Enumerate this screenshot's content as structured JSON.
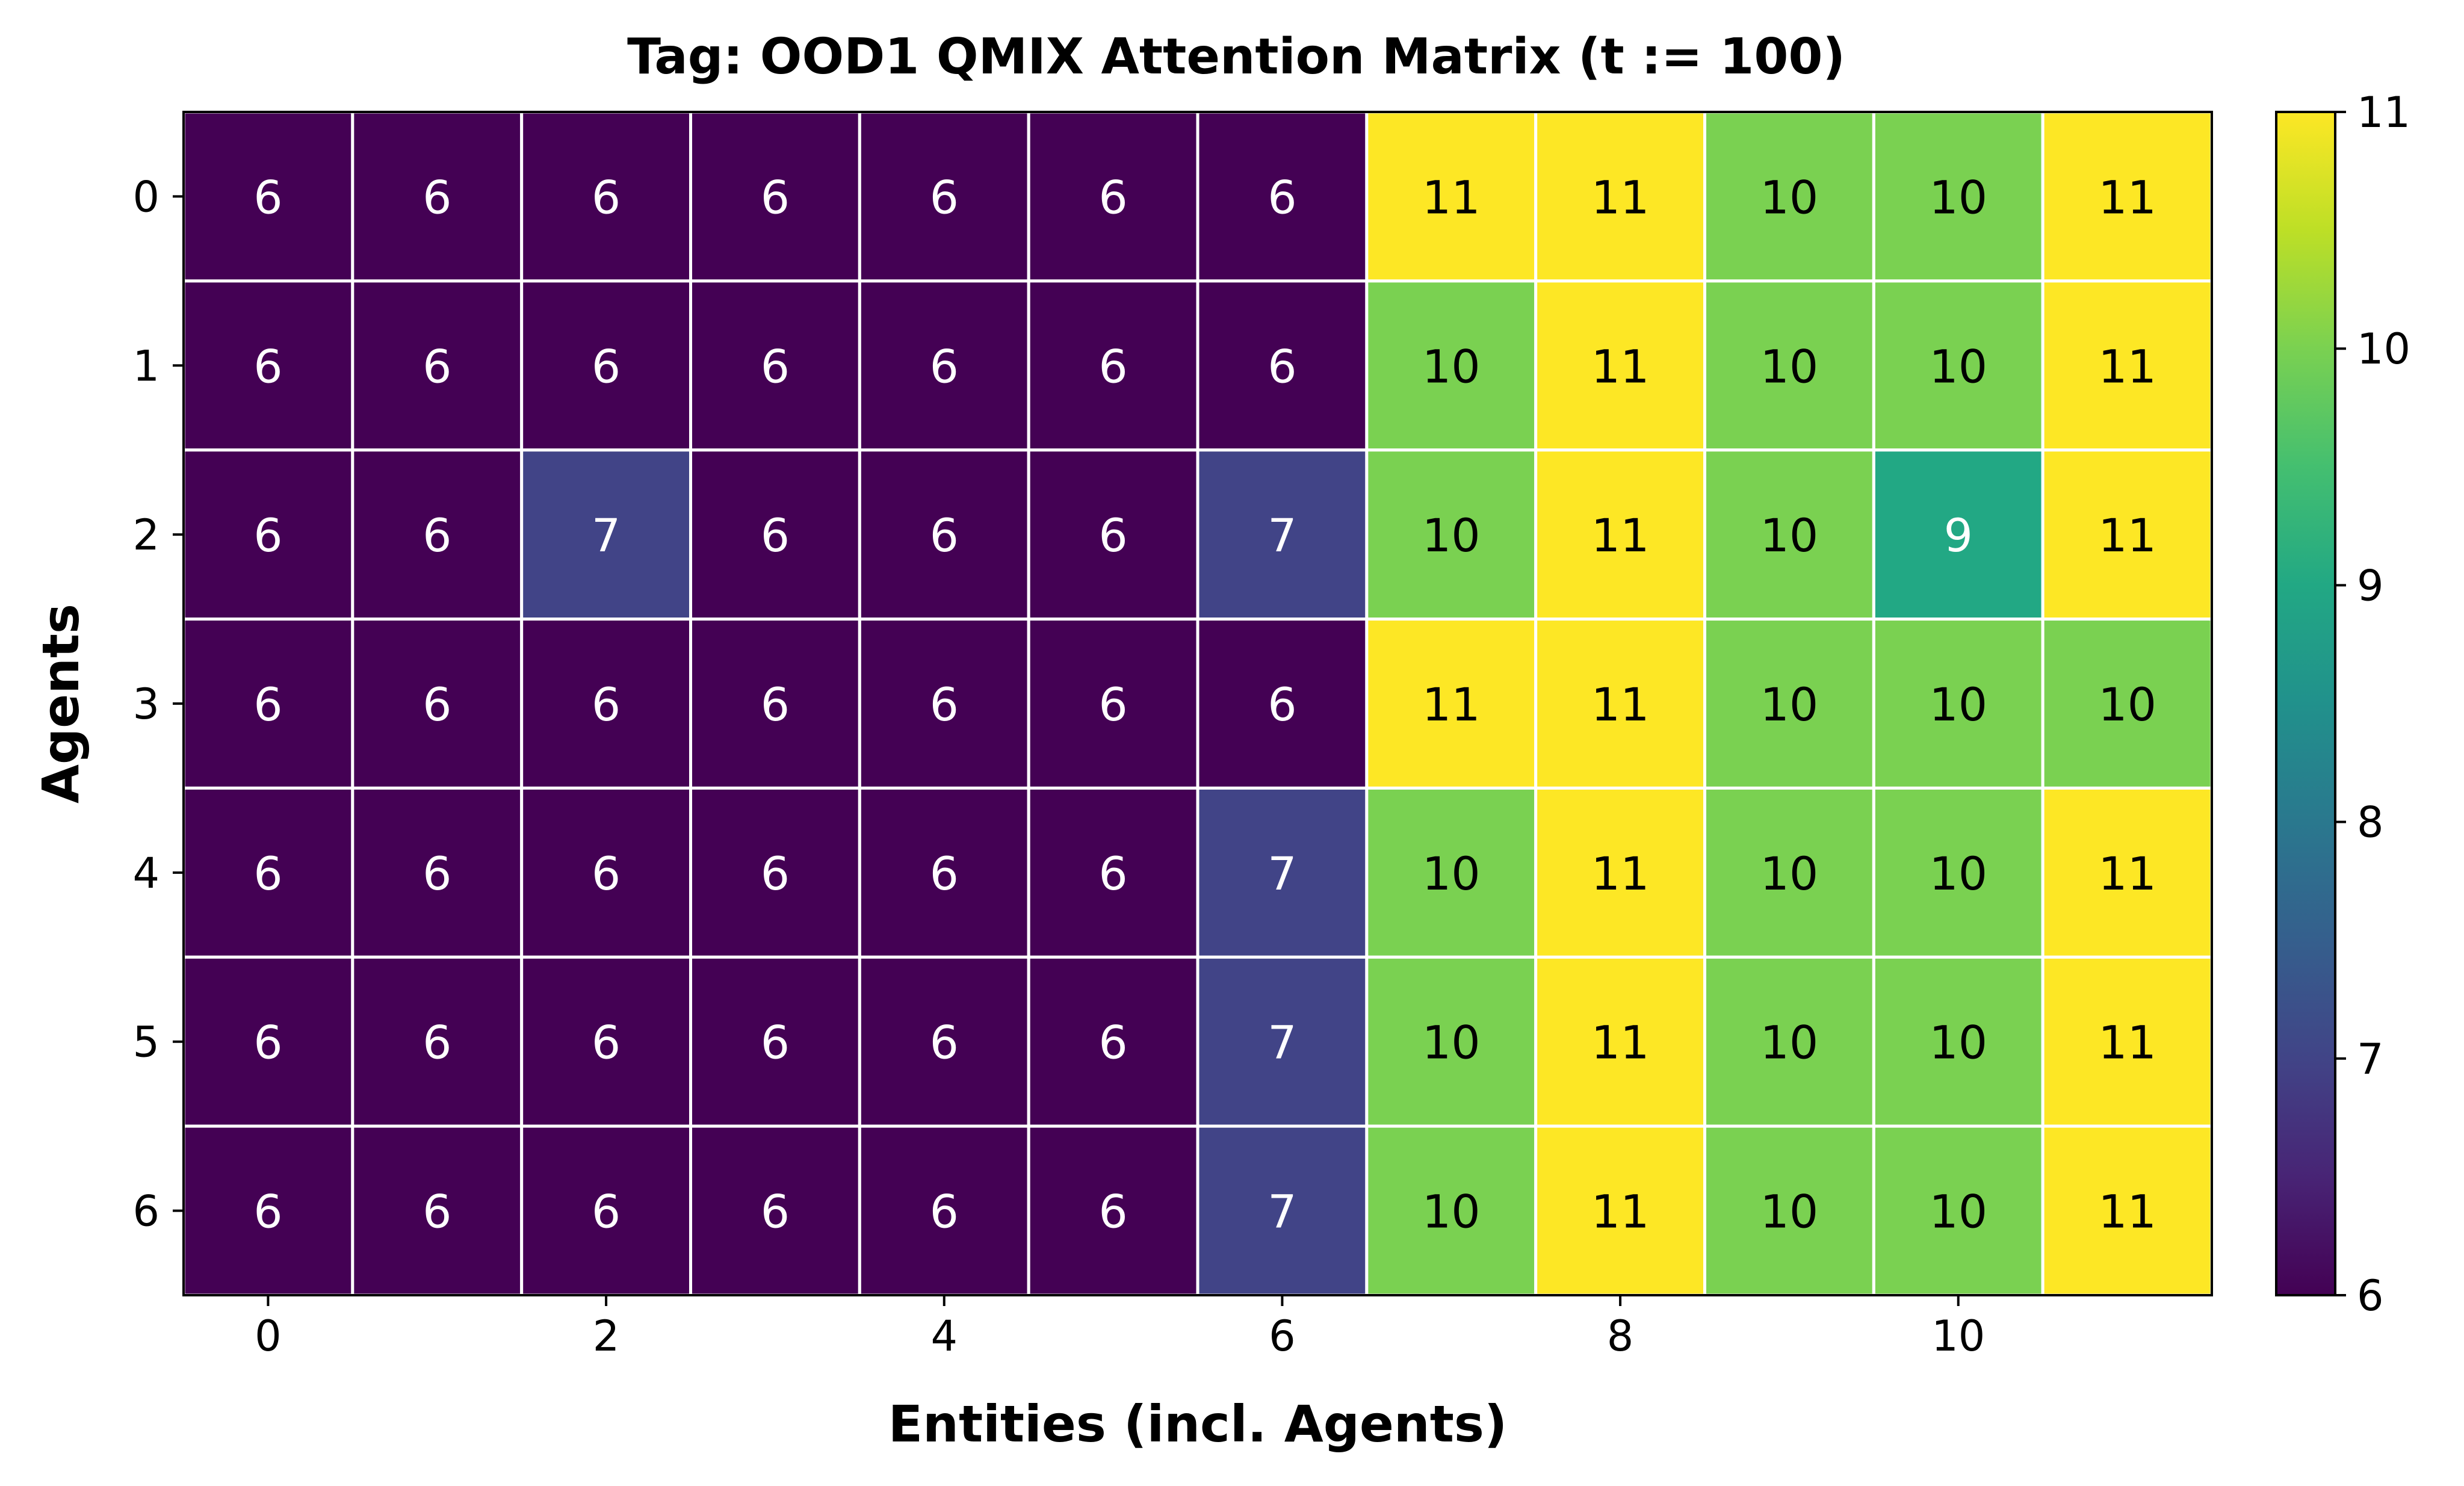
{
  "chart_data": {
    "type": "heatmap",
    "title": "Tag: OOD1 QMIX Attention Matrix (t := 100)",
    "xlabel": "Entities (incl. Agents)",
    "ylabel": "Agents",
    "rows": [
      0,
      1,
      2,
      3,
      4,
      5,
      6
    ],
    "columns": [
      0,
      1,
      2,
      3,
      4,
      5,
      6,
      7,
      8,
      9,
      10,
      11
    ],
    "x_tick_labels": [
      "0",
      "2",
      "4",
      "6",
      "8",
      "10"
    ],
    "y_tick_labels": [
      "0",
      "1",
      "2",
      "3",
      "4",
      "5",
      "6"
    ],
    "values": [
      [
        6,
        6,
        6,
        6,
        6,
        6,
        6,
        11,
        11,
        10,
        10,
        11
      ],
      [
        6,
        6,
        6,
        6,
        6,
        6,
        6,
        10,
        11,
        10,
        10,
        11
      ],
      [
        6,
        6,
        7,
        6,
        6,
        6,
        7,
        10,
        11,
        10,
        9,
        11
      ],
      [
        6,
        6,
        6,
        6,
        6,
        6,
        6,
        11,
        11,
        10,
        10,
        10
      ],
      [
        6,
        6,
        6,
        6,
        6,
        6,
        7,
        10,
        11,
        10,
        10,
        11
      ],
      [
        6,
        6,
        6,
        6,
        6,
        6,
        7,
        10,
        11,
        10,
        10,
        11
      ],
      [
        6,
        6,
        6,
        6,
        6,
        6,
        7,
        10,
        11,
        10,
        10,
        11
      ]
    ],
    "colorbar": {
      "colormap": "viridis",
      "min": 6,
      "max": 11,
      "ticks": [
        "6",
        "7",
        "8",
        "9",
        "10",
        "11"
      ]
    },
    "cell_text_colors": {
      "dark_cells": "#ffffff",
      "light_cells": "#000000"
    },
    "grid_lines": true,
    "grid_color": "#ffffff"
  }
}
